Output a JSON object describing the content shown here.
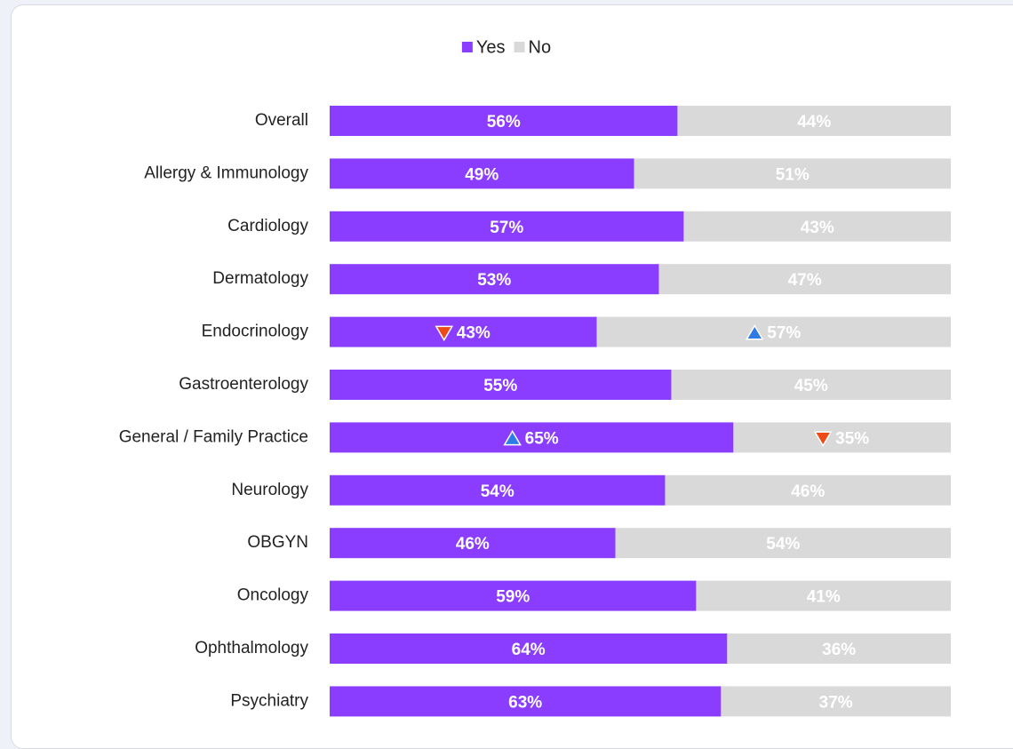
{
  "chart_data": {
    "type": "stacked-bar-horizontal",
    "categories": [
      "Overall",
      "Allergy & Immunology",
      "Cardiology",
      "Dermatology",
      "Endocrinology",
      "Gastroenterology",
      "General / Family Practice",
      "Neurology",
      "OBGYN",
      "Oncology",
      "Ophthalmology",
      "Psychiatry"
    ],
    "series": [
      {
        "name": "Yes",
        "color": "#8b3dff",
        "values": [
          56,
          49,
          57,
          53,
          43,
          55,
          65,
          54,
          46,
          59,
          64,
          63
        ],
        "value_labels": [
          "56%",
          "49%",
          "57%",
          "53%",
          "43%",
          "55%",
          "65%",
          "54%",
          "46%",
          "59%",
          "64%",
          "63%"
        ],
        "significance": [
          null,
          null,
          null,
          null,
          "down",
          null,
          "up",
          null,
          null,
          null,
          null,
          null
        ]
      },
      {
        "name": "No",
        "color": "#d9d9d9",
        "values": [
          44,
          51,
          43,
          47,
          57,
          45,
          35,
          46,
          54,
          41,
          36,
          37
        ],
        "value_labels": [
          "44%",
          "51%",
          "43%",
          "47%",
          "57%",
          "45%",
          "35%",
          "46%",
          "54%",
          "41%",
          "36%",
          "37%"
        ],
        "significance": [
          null,
          null,
          null,
          null,
          "up",
          null,
          "down",
          null,
          null,
          null,
          null,
          null
        ]
      }
    ],
    "xlim": [
      0,
      100
    ],
    "legend": "top"
  }
}
